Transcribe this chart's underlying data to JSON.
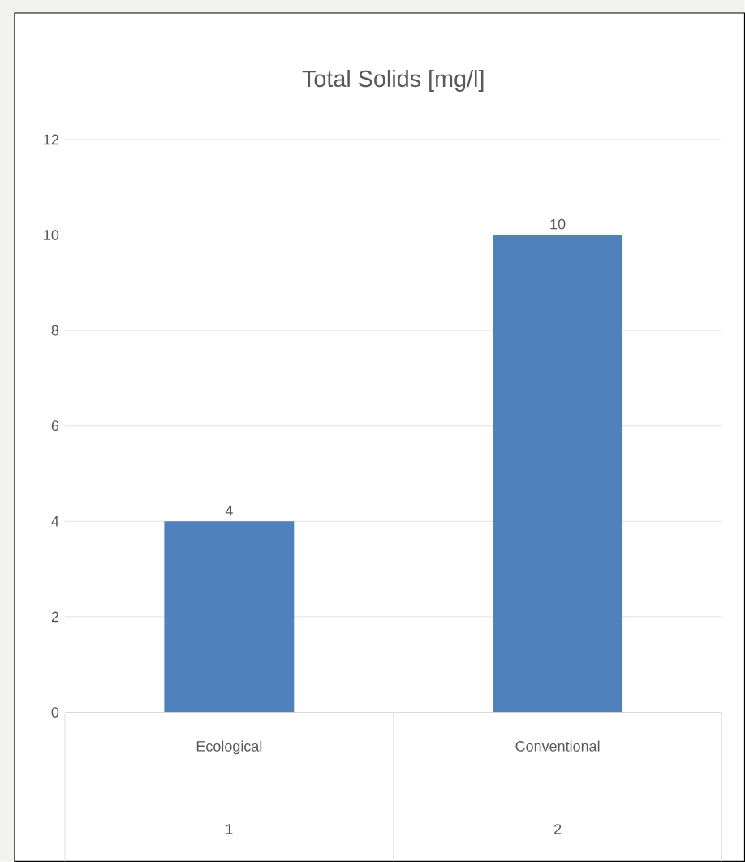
{
  "chart_data": {
    "type": "bar",
    "title": "Total Solids [mg/l]",
    "categories": [
      "Ecological",
      "Conventional"
    ],
    "values": [
      4,
      10
    ],
    "color": "#4f81bd",
    "ylim": [
      0,
      12
    ],
    "yticks": [
      0,
      2,
      4,
      6,
      8,
      10,
      12
    ],
    "grid": "y",
    "data_labels": true,
    "annotations": [
      "1",
      "2"
    ]
  }
}
